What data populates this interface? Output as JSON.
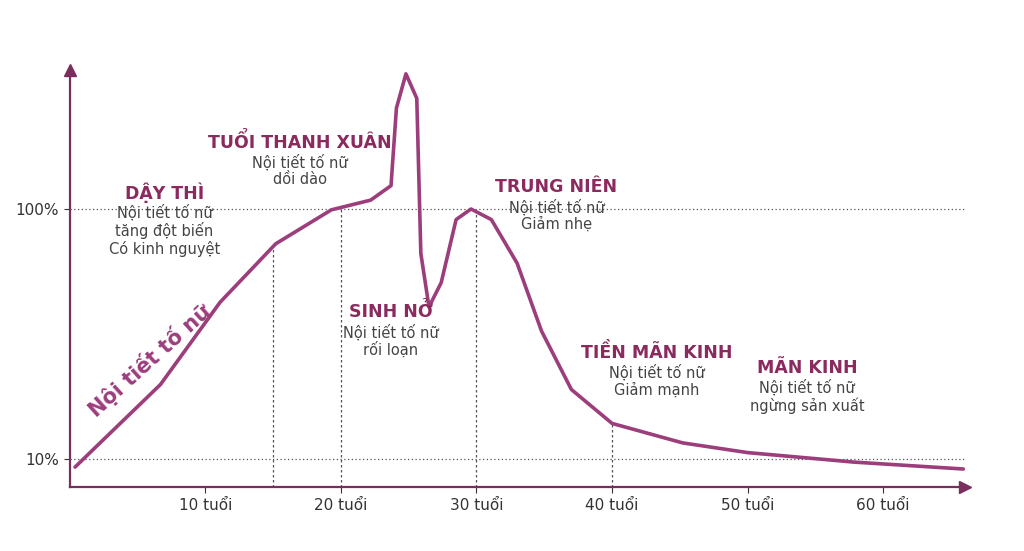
{
  "chart_data": {
    "type": "line",
    "color": "#9c3d7c",
    "curve_label": "Nội tiết tố nữ",
    "x": [
      0.4,
      6.7,
      11.1,
      15.2,
      19.3,
      22.2,
      23.7,
      24.1,
      24.8,
      25.6,
      25.9,
      26.5,
      27.4,
      28.5,
      29.6,
      31.1,
      33.0,
      34.8,
      37.0,
      40.0,
      45.2,
      50.0,
      57.8,
      65.9
    ],
    "values": [
      7.2,
      36.9,
      66.5,
      87.5,
      99.7,
      103.2,
      108.4,
      136.3,
      148.6,
      139.8,
      84.0,
      64.8,
      73.5,
      96.2,
      100.0,
      96.2,
      80.5,
      56.1,
      35.1,
      22.9,
      15.9,
      12.4,
      9.0,
      6.5
    ],
    "xlim": [
      0,
      66
    ],
    "ylim": [
      0,
      150
    ],
    "xticks": [
      {
        "value": 10,
        "label": "10 tuổi"
      },
      {
        "value": 20,
        "label": "20 tuổi"
      },
      {
        "value": 30,
        "label": "30 tuổi"
      },
      {
        "value": 40,
        "label": "40 tuổi"
      },
      {
        "value": 50,
        "label": "50 tuổi"
      },
      {
        "value": 60,
        "label": "60 tuổi"
      }
    ],
    "yticks": [
      {
        "value": 10,
        "label": "10%"
      },
      {
        "value": 100,
        "label": "100%"
      }
    ],
    "stage_lines": [
      15,
      20,
      30,
      40
    ],
    "annotations": [
      {
        "title": "DẬY THÌ",
        "text": "Nội tiết tố nữ\ntăng đột biến\nCó kinh nguyệt"
      },
      {
        "title": "TUỔI THANH XUÂN",
        "text": "Nội tiết tố nữ\ndồi dào"
      },
      {
        "title": "SINH NỞ",
        "text": "Nội tiết tố nữ\nrối loạn"
      },
      {
        "title": "TRUNG NIÊN",
        "text": "Nội tiết tố nữ\nGiảm nhẹ"
      },
      {
        "title": "TIỀN MÃN KINH",
        "text": "Nội tiết tố nữ\nGiảm mạnh"
      },
      {
        "title": "MÃN KINH",
        "text": "Nội tiết tố nữ\nngừng sản xuất"
      }
    ]
  }
}
